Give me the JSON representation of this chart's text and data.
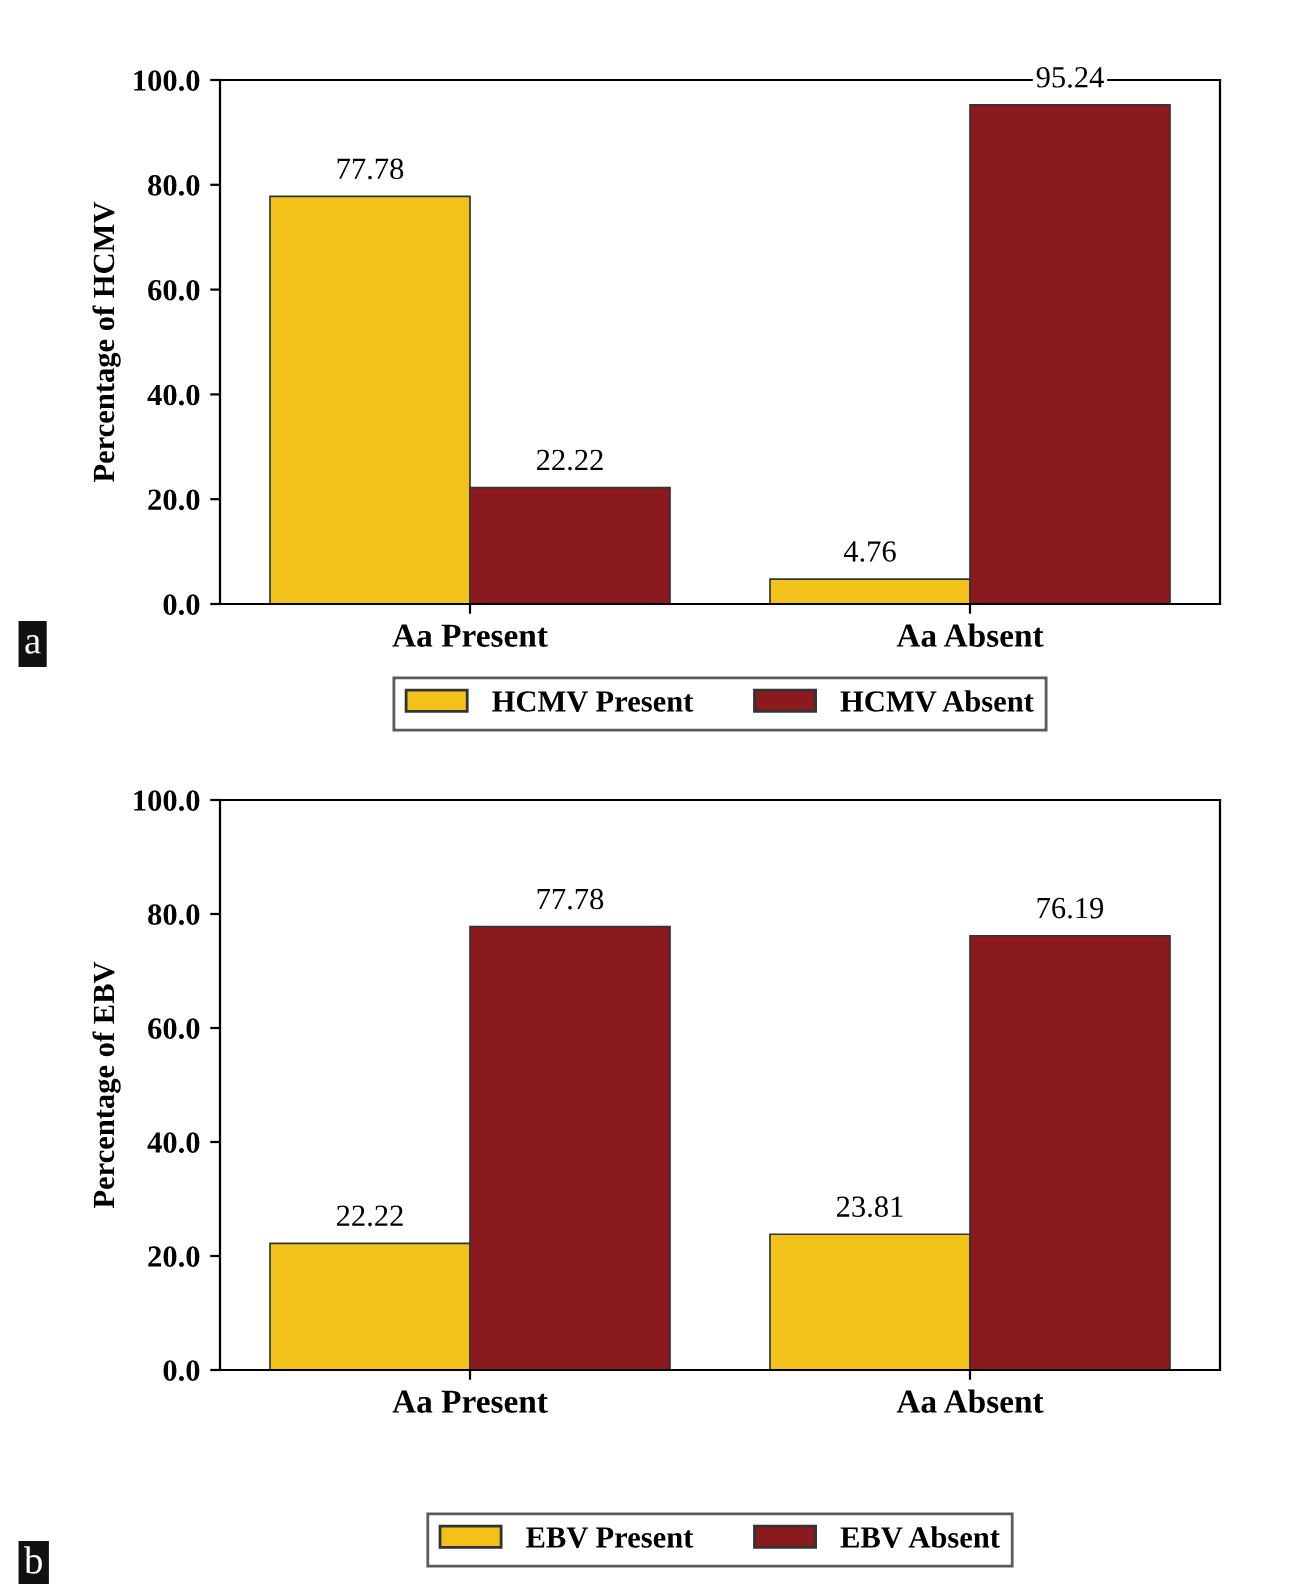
{
  "chart_data": [
    {
      "type": "bar",
      "ylabel": "Percentage of HCMV",
      "categories": [
        "Aa Present",
        "Aa Absent"
      ],
      "series": [
        {
          "name": "HCMV Present",
          "color": "#f2c21b",
          "values": [
            77.78,
            4.76
          ]
        },
        {
          "name": "HCMV Absent",
          "color": "#8b1a1f",
          "values": [
            22.22,
            95.24
          ]
        }
      ],
      "ylim": [
        0,
        100
      ],
      "yticks": [
        {
          "value": 0,
          "label": "0.0"
        },
        {
          "value": 20,
          "label": "20.0"
        },
        {
          "value": 40,
          "label": "40.0"
        },
        {
          "value": 60,
          "label": "60.0"
        },
        {
          "value": 80,
          "label": "80.0"
        },
        {
          "value": 100,
          "label": "100.0"
        }
      ],
      "data_labels": true,
      "legend": "bottom",
      "grid": false,
      "annotations": [
        "a"
      ]
    },
    {
      "type": "bar",
      "ylabel": "Percentage of EBV",
      "categories": [
        "Aa Present",
        "Aa Absent"
      ],
      "series": [
        {
          "name": "EBV Present",
          "color": "#f2c21b",
          "values": [
            22.22,
            23.81
          ]
        },
        {
          "name": "EBV Absent",
          "color": "#8b1a1f",
          "values": [
            77.78,
            76.19
          ]
        }
      ],
      "ylim": [
        0,
        100
      ],
      "yticks": [
        {
          "value": 0,
          "label": "0.0"
        },
        {
          "value": 20,
          "label": "20.0"
        },
        {
          "value": 40,
          "label": "40.0"
        },
        {
          "value": 60,
          "label": "60.0"
        },
        {
          "value": 80,
          "label": "80.0"
        },
        {
          "value": 100,
          "label": "100.0"
        }
      ],
      "data_labels": true,
      "legend": "bottom",
      "grid": false,
      "annotations": [
        "b"
      ]
    }
  ]
}
